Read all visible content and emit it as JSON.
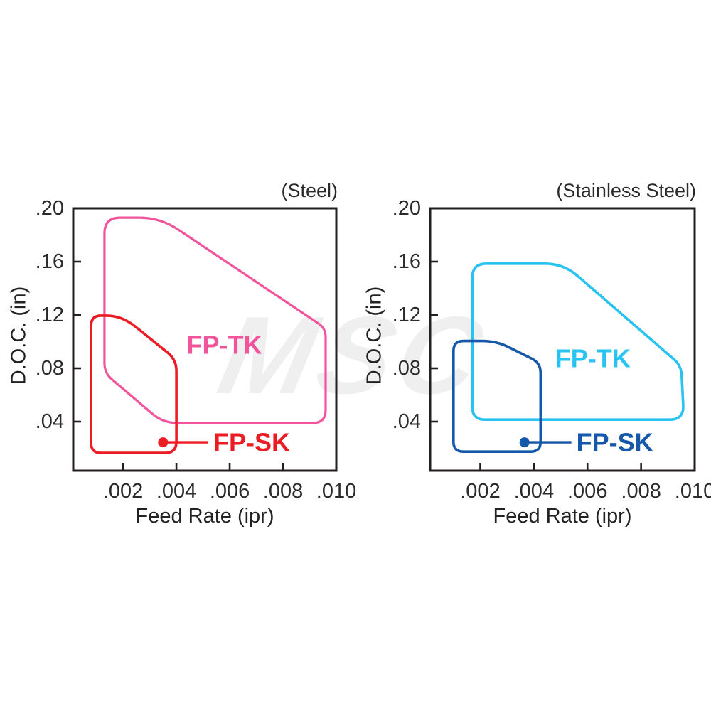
{
  "watermark": {
    "text": "MSC"
  },
  "charts": [
    {
      "id": "steel",
      "title": "(Steel)",
      "xlabel": "Feed Rate (ipr)",
      "ylabel": "D.O.C. (in)",
      "chart_data": {
        "type": "area",
        "description": "Recommended operating envelopes: feed rate vs depth of cut for steel",
        "x_axis": {
          "label": "Feed Rate (ipr)",
          "range": [
            0.00013,
            0.01
          ],
          "ticks": [
            {
              "label": ".002",
              "value": 0.002
            },
            {
              "label": ".004",
              "value": 0.004
            },
            {
              "label": ".006",
              "value": 0.006
            },
            {
              "label": ".008",
              "value": 0.008
            },
            {
              "label": ".010",
              "value": 0.01
            }
          ]
        },
        "y_axis": {
          "label": "D.O.C. (in)",
          "range": [
            0.0032,
            0.2
          ],
          "ticks": [
            {
              "label": ".20",
              "value": 0.2
            },
            {
              "label": ".16",
              "value": 0.16
            },
            {
              "label": ".12",
              "value": 0.12
            },
            {
              "label": ".08",
              "value": 0.08
            },
            {
              "label": ".04",
              "value": 0.04
            }
          ]
        },
        "regions": [
          {
            "name": "FP-TK",
            "color": "#f2549c",
            "stroke_width": 3.2,
            "label": {
              "text": "FP-TK",
              "x": 0.0058,
              "y": 0.0975
            },
            "outline": [
              [
                0.0013,
                0.193,
                22
              ],
              [
                0.0034,
                0.193,
                30
              ],
              [
                0.0096,
                0.11,
                12
              ],
              [
                0.0096,
                0.039,
                18
              ],
              [
                0.0035,
                0.039,
                20
              ],
              [
                0.0013,
                0.0765,
                14
              ]
            ]
          },
          {
            "name": "FP-SK",
            "color": "#ec1c24",
            "stroke_width": 3.6,
            "callout": {
              "text": "FP-SK",
              "dot": [
                0.0035,
                0.0245
              ],
              "line_end_x": 0.0052
            },
            "outline": [
              [
                0.0008,
                0.1195,
                14
              ],
              [
                0.00195,
                0.1195,
                24
              ],
              [
                0.004,
                0.0865,
                16
              ],
              [
                0.004,
                0.0165,
                16
              ],
              [
                0.0008,
                0.0165,
                14
              ]
            ]
          }
        ]
      }
    },
    {
      "id": "stainless-steel",
      "title": "(Stainless Steel)",
      "xlabel": "Feed Rate (ipr)",
      "ylabel": "D.O.C. (in)",
      "chart_data": {
        "type": "area",
        "description": "Recommended operating envelopes: feed rate vs depth of cut for stainless steel",
        "x_axis": {
          "label": "Feed Rate (ipr)",
          "range": [
            0.00013,
            0.01
          ],
          "ticks": [
            {
              "label": ".002",
              "value": 0.002
            },
            {
              "label": ".004",
              "value": 0.004
            },
            {
              "label": ".006",
              "value": 0.006
            },
            {
              "label": ".008",
              "value": 0.008
            },
            {
              "label": ".010",
              "value": 0.01
            }
          ]
        },
        "y_axis": {
          "label": "D.O.C. (in)",
          "range": [
            0.0032,
            0.2
          ],
          "ticks": [
            {
              "label": ".20",
              "value": 0.2
            },
            {
              "label": ".16",
              "value": 0.16
            },
            {
              "label": ".12",
              "value": 0.12
            },
            {
              "label": ".08",
              "value": 0.08
            },
            {
              "label": ".04",
              "value": 0.04
            }
          ]
        },
        "regions": [
          {
            "name": "FP-TK",
            "color": "#29c3f1",
            "stroke_width": 3.6,
            "label": {
              "text": "FP-TK",
              "x": 0.0062,
              "y": 0.0875
            },
            "outline": [
              [
                0.0017,
                0.1585,
                20
              ],
              [
                0.0051,
                0.1585,
                26
              ],
              [
                0.0095,
                0.082,
                14
              ],
              [
                0.0096,
                0.0415,
                20
              ],
              [
                0.0017,
                0.0415,
                18
              ]
            ]
          },
          {
            "name": "FP-SK",
            "color": "#1557a8",
            "stroke_width": 3.6,
            "callout": {
              "text": "FP-SK",
              "dot": [
                0.00365,
                0.0245
              ],
              "line_end_x": 0.0054
            },
            "outline": [
              [
                0.001,
                0.1005,
                14
              ],
              [
                0.0026,
                0.1005,
                20
              ],
              [
                0.00425,
                0.084,
                14
              ],
              [
                0.00425,
                0.0175,
                14
              ],
              [
                0.001,
                0.0175,
                14
              ]
            ]
          }
        ]
      }
    }
  ]
}
